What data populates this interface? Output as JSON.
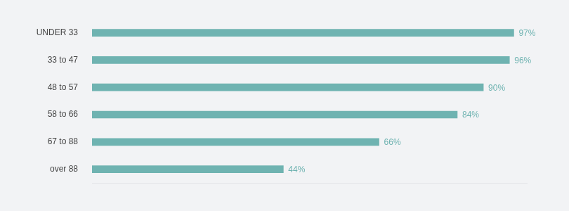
{
  "chart_data": {
    "type": "bar",
    "orientation": "horizontal",
    "categories": [
      "UNDER 33",
      "33 to 47",
      "48 to 57",
      "58 to 66",
      "67 to 88",
      "over 88"
    ],
    "values": [
      97,
      96,
      90,
      84,
      66,
      44
    ],
    "value_labels": [
      "97%",
      "96%",
      "90%",
      "84%",
      "66%",
      "44%"
    ],
    "color": "#6fb3b1",
    "xlim": [
      0,
      100
    ],
    "grid": false,
    "data_labels": true,
    "tick_labels": "y"
  }
}
